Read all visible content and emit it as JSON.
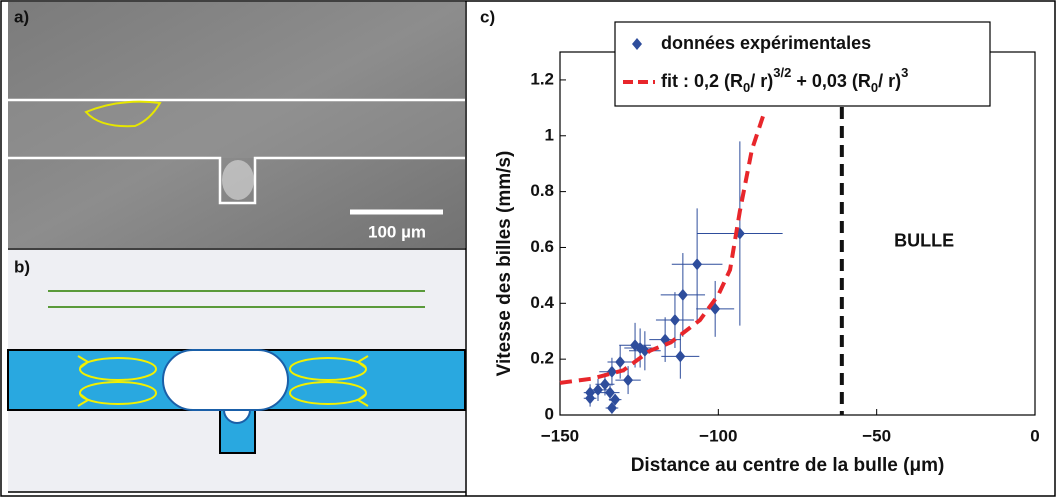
{
  "panels": {
    "a": {
      "label": "a)",
      "scale_bar": "100 µm"
    },
    "b": {
      "label": "b)"
    },
    "c": {
      "label": "c)"
    }
  },
  "chart_data": {
    "type": "scatter",
    "xlabel": "Distance au centre de la bulle (μm)",
    "ylabel": "Vitesse des billes (mm/s)",
    "xlim": [
      -150,
      0
    ],
    "ylim": [
      0,
      1.3
    ],
    "xticks": [
      {
        "value": -150,
        "label": "−150"
      },
      {
        "value": -100,
        "label": "−100"
      },
      {
        "value": -50,
        "label": "−50"
      },
      0
    ],
    "yticks": [
      0,
      0.2,
      0.4,
      0.6,
      0.8,
      1,
      1.2
    ],
    "legend": "top",
    "series": [
      {
        "name": "données expérimentales",
        "color": "#2e4d9c",
        "marker": "diamond",
        "x": [
          -93.2,
          -106.7,
          -111.2,
          -101,
          -113.7,
          -116.8,
          -112,
          -126.3,
          -124.7,
          -123.2,
          -131,
          -128.5,
          -133.6,
          -135.8,
          -138,
          -140.5,
          -140.5,
          -134.2,
          -133.6,
          -132.6
        ],
        "values": [
          0.65,
          0.54,
          0.43,
          0.38,
          0.34,
          0.27,
          0.21,
          0.25,
          0.24,
          0.23,
          0.19,
          0.125,
          0.155,
          0.11,
          0.09,
          0.06,
          0.08,
          0.08,
          0.025,
          0.055
        ],
        "xerr": [
          13.5,
          8,
          7,
          6,
          6,
          5,
          6,
          5,
          5,
          5,
          4,
          4,
          4,
          3,
          3,
          2,
          2,
          3,
          2,
          2
        ],
        "yerr": [
          0.33,
          0.2,
          0.15,
          0.1,
          0.1,
          0.08,
          0.08,
          0.08,
          0.07,
          0.07,
          0.06,
          0.05,
          0.05,
          0.04,
          0.04,
          0.03,
          0.03,
          0.03,
          0.02,
          0.02
        ]
      },
      {
        "name": [
          {
            "text": "fit : 0,2 (R"
          },
          {
            "text": "0",
            "sub": true
          },
          {
            "text": "/ r)"
          },
          {
            "text": "3/2",
            "sup": true
          },
          {
            "text": " + 0,03 (R"
          },
          {
            "text": "0",
            "sub": true
          },
          {
            "text": "/ r)"
          },
          {
            "text": "3",
            "sup": true
          }
        ],
        "color": "#e8262b",
        "style": "dashed",
        "x": [
          -150,
          -140,
          -130,
          -121.6,
          -115,
          -105.8,
          -100,
          -96.3,
          -93.2,
          -89.4,
          -85.3
        ],
        "values": [
          0.115,
          0.13,
          0.16,
          0.23,
          0.26,
          0.34,
          0.43,
          0.52,
          0.73,
          0.95,
          1.09
        ]
      }
    ],
    "vline": {
      "x": -61,
      "color": "#111111"
    },
    "annotations": [
      {
        "text": "BULLE",
        "x": -35,
        "y": 0.62
      }
    ]
  }
}
